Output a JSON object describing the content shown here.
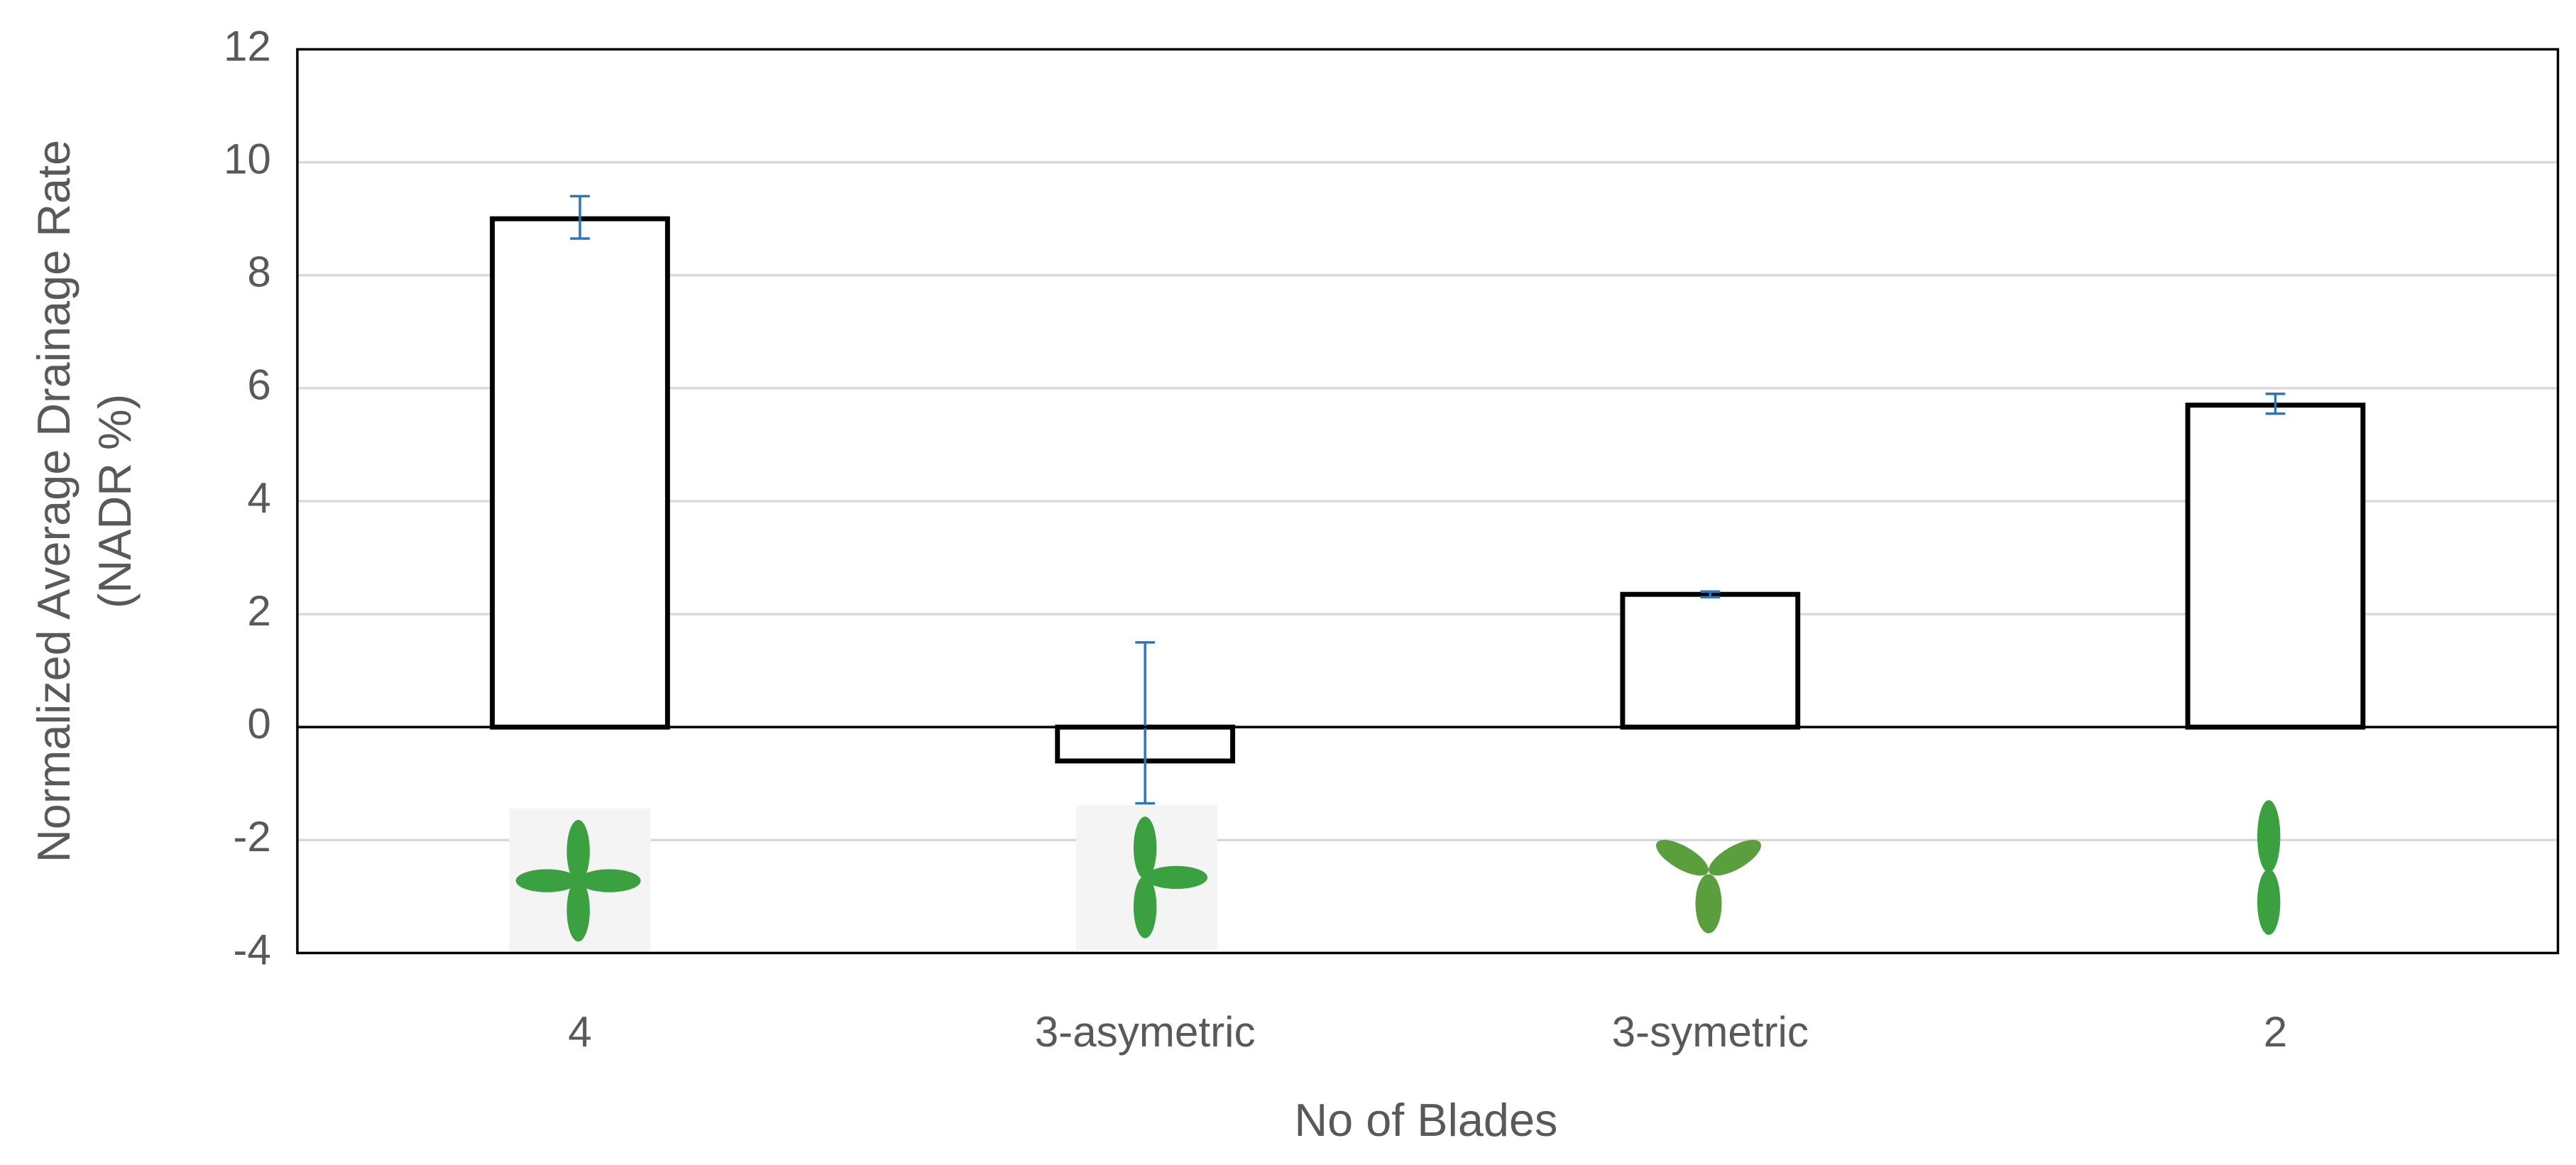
{
  "chart_data": {
    "type": "bar",
    "x_label": "No of Blades",
    "y_label": [
      "Normalized Average Drainage Rate",
      "(NADR %)"
    ],
    "categories": [
      "4",
      "3-asymetric",
      "3-symetric",
      "2"
    ],
    "values": [
      9.0,
      -0.6,
      2.35,
      5.7
    ],
    "error_minus": [
      0.35,
      0.75,
      0.05,
      0.15
    ],
    "error_plus": [
      0.4,
      2.1,
      0.05,
      0.2
    ],
    "color": "#000000",
    "error_color": "#2e75b6",
    "ylim": [
      -4,
      12
    ],
    "yticks": [
      -4,
      -2,
      0,
      2,
      4,
      6,
      8,
      10,
      12
    ],
    "grid": true
  }
}
